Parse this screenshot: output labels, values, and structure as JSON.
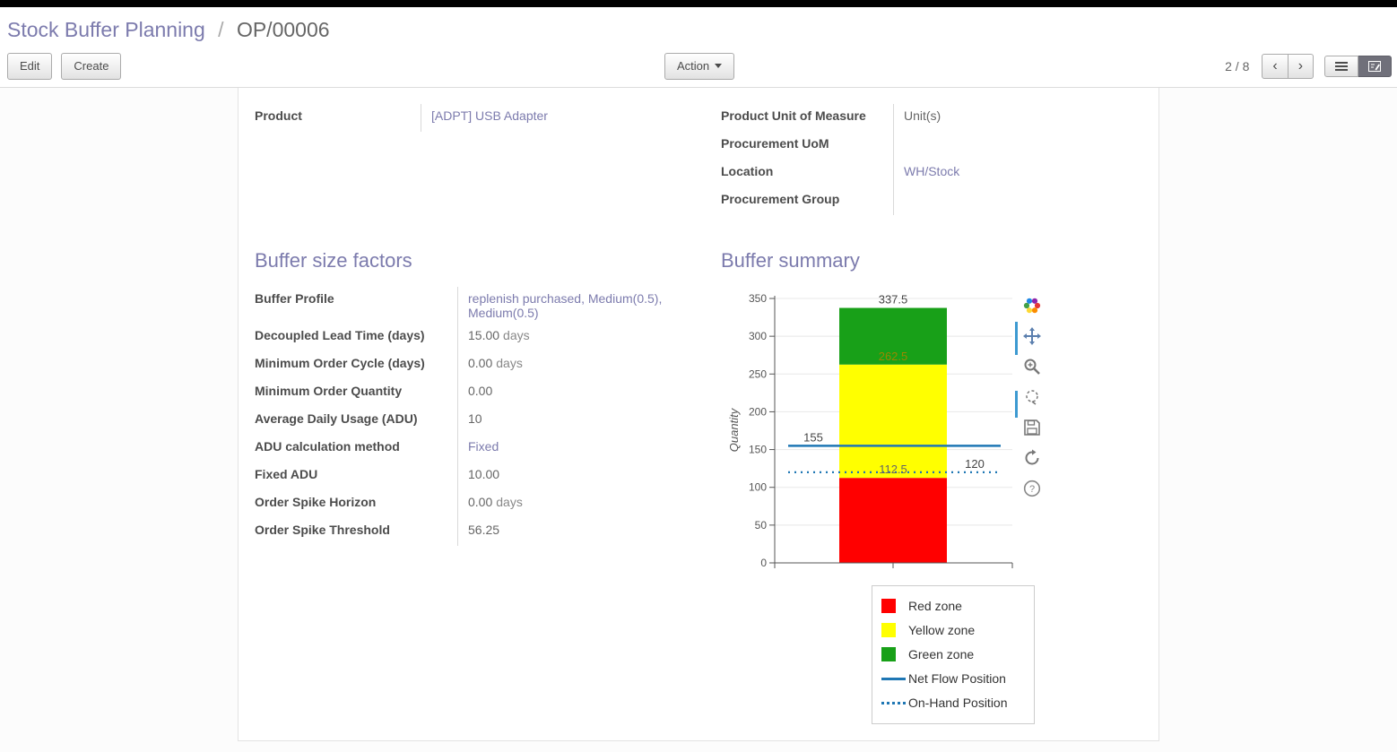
{
  "breadcrumb": {
    "section": "Stock Buffer Planning",
    "separator": "/",
    "record": "OP/00006"
  },
  "toolbar": {
    "edit_label": "Edit",
    "create_label": "Create",
    "action_label": "Action",
    "pager": "2 / 8",
    "prev_glyph": "‹",
    "next_glyph": "›"
  },
  "form": {
    "info_left": [
      {
        "label": "Product",
        "value": "[ADPT] USB Adapter",
        "is_link": true,
        "suffix": ""
      }
    ],
    "info_right": [
      {
        "label": "Product Unit of Measure",
        "value": "Unit(s)",
        "is_link": false,
        "suffix": ""
      },
      {
        "label": "Procurement UoM",
        "value": "",
        "is_link": false,
        "suffix": ""
      },
      {
        "label": "Location",
        "value": "WH/Stock",
        "is_link": true,
        "suffix": ""
      },
      {
        "label": "Procurement Group",
        "value": "",
        "is_link": false,
        "suffix": ""
      }
    ],
    "factors": {
      "title": "Buffer size factors",
      "rows": [
        {
          "label": "Buffer Profile",
          "value": "replenish purchased, Medium(0.5), Medium(0.5)",
          "is_link": true,
          "suffix": ""
        },
        {
          "label": "Decoupled Lead Time (days)",
          "value": "15.00",
          "is_link": false,
          "suffix": "days"
        },
        {
          "label": "Minimum Order Cycle (days)",
          "value": "0.00",
          "is_link": false,
          "suffix": "days"
        },
        {
          "label": "Minimum Order Quantity",
          "value": "0.00",
          "is_link": false,
          "suffix": ""
        },
        {
          "label": "Average Daily Usage (ADU)",
          "value": "10",
          "is_link": false,
          "suffix": ""
        },
        {
          "label": "ADU calculation method",
          "value": "Fixed",
          "is_link": true,
          "suffix": ""
        },
        {
          "label": "Fixed ADU",
          "value": "10.00",
          "is_link": false,
          "suffix": ""
        },
        {
          "label": "Order Spike Horizon",
          "value": "0.00",
          "is_link": false,
          "suffix": "days"
        },
        {
          "label": "Order Spike Threshold",
          "value": "56.25",
          "is_link": false,
          "suffix": ""
        }
      ]
    },
    "summary_title": "Buffer summary"
  },
  "chart_data": {
    "type": "bar",
    "title": "",
    "ylabel": "Quantity",
    "ylim": [
      0,
      350
    ],
    "yticks": [
      0,
      50,
      100,
      150,
      200,
      250,
      300,
      350
    ],
    "grid": true,
    "zones": [
      {
        "name": "Red zone",
        "from": 0,
        "to": 112.5,
        "color": "#FF0000"
      },
      {
        "name": "Yellow zone",
        "from": 112.5,
        "to": 262.5,
        "color": "#FFFF00"
      },
      {
        "name": "Green zone",
        "from": 262.5,
        "to": 337.5,
        "color": "#18A018"
      }
    ],
    "lines": [
      {
        "name": "Net Flow Position",
        "value": 155,
        "style": "solid",
        "color": "#1F77B4"
      },
      {
        "name": "On-Hand Position",
        "value": 120,
        "style": "dotted",
        "color": "#1F77B4"
      }
    ],
    "value_labels": [
      {
        "text": "337.5",
        "at": 337.5,
        "align": "center",
        "color": "#444444"
      },
      {
        "text": "262.5",
        "at": 262.5,
        "align": "center",
        "color": "#9a8700"
      },
      {
        "text": "155",
        "at": 155,
        "align": "left",
        "color": "#444444"
      },
      {
        "text": "112.5",
        "at": 112.5,
        "align": "center",
        "color": "#666666"
      },
      {
        "text": "120",
        "at": 120,
        "align": "right",
        "color": "#444444"
      }
    ],
    "legend": [
      "Red zone",
      "Yellow zone",
      "Green zone",
      "Net Flow Position",
      "On-Hand Position"
    ],
    "legend_position": "bottom-right",
    "chart_tools": [
      "chart-settings",
      "pan",
      "zoom",
      "select",
      "save",
      "refresh",
      "help"
    ]
  }
}
